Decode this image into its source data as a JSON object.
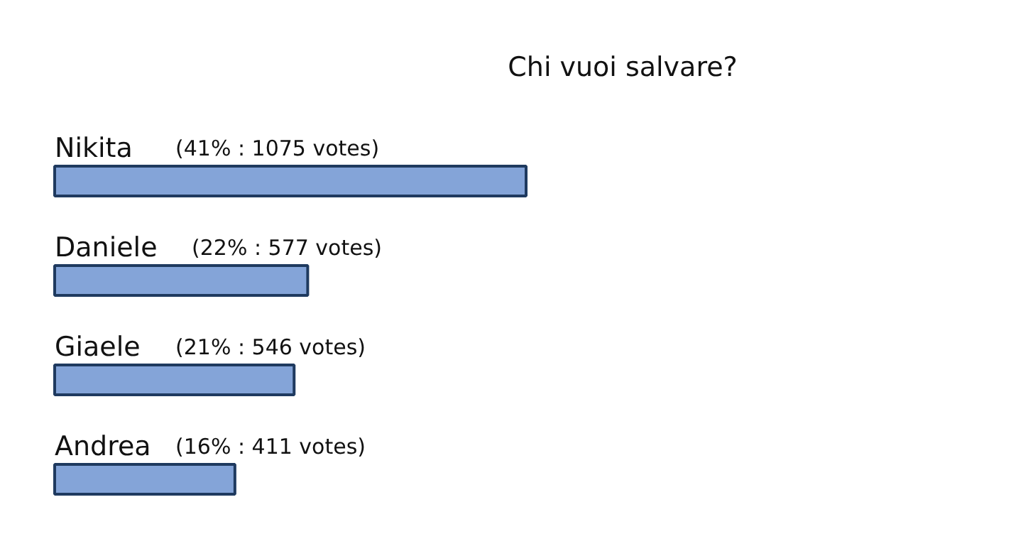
{
  "chart_data": {
    "type": "bar",
    "orientation": "horizontal",
    "title": "Chi vuoi salvare?",
    "categories": [
      "Nikita",
      "Daniele",
      "Giaele",
      "Andrea"
    ],
    "values": [
      1075,
      577,
      546,
      411
    ],
    "value_labels": [
      "(41% : 1075 votes)",
      "(22% : 577 votes)",
      "(21% : 546 votes)",
      "(16% : 411 votes)"
    ],
    "color": "#84a4d8"
  }
}
